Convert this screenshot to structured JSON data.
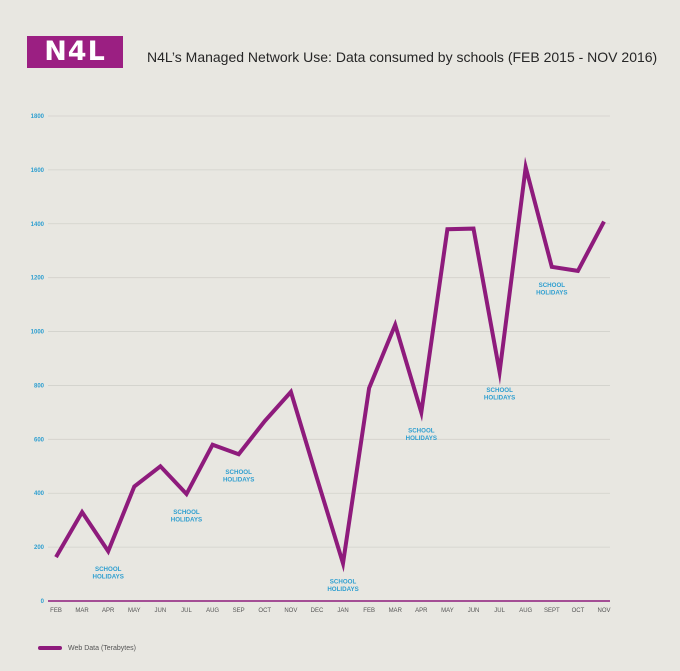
{
  "logo": {
    "text": "N4L"
  },
  "chart_data": {
    "type": "line",
    "title": "N4L’s Managed Network Use: Data consumed by schools (FEB 2015 - NOV 2016)",
    "xlabel": "",
    "ylabel": "",
    "categories": [
      "FEB",
      "MAR",
      "APR",
      "MAY",
      "JUN",
      "JUL",
      "AUG",
      "SEP",
      "OCT",
      "NOV",
      "DEC",
      "JAN",
      "FEB",
      "MAR",
      "APR",
      "MAY",
      "JUN",
      "JUL",
      "AUG",
      "SEPT",
      "OCT",
      "NOV"
    ],
    "series": [
      {
        "name": "Web Data (Terabytes)",
        "color": "#8e1b7c",
        "values": [
          163,
          330,
          185,
          425,
          500,
          397,
          580,
          545,
          668,
          776,
          455,
          140,
          790,
          1025,
          700,
          1380,
          1382,
          850,
          1610,
          1240,
          1225,
          1408
        ]
      }
    ],
    "ylim": [
      0,
      1800
    ],
    "yticks": [
      0,
      200,
      400,
      600,
      800,
      1000,
      1200,
      1400,
      1600,
      1800
    ],
    "grid": true,
    "legend_position": "bottom-left",
    "annotations": [
      {
        "text": [
          "SCHOOL",
          "HOLIDAYS"
        ],
        "category_index": 2,
        "value": 185
      },
      {
        "text": [
          "SCHOOL",
          "HOLIDAYS"
        ],
        "category_index": 5,
        "value": 397
      },
      {
        "text": [
          "SCHOOL",
          "HOLIDAYS"
        ],
        "category_index": 7,
        "value": 545
      },
      {
        "text": [
          "SCHOOL",
          "HOLIDAYS"
        ],
        "category_index": 11,
        "value": 140
      },
      {
        "text": [
          "SCHOOL",
          "HOLIDAYS"
        ],
        "category_index": 14,
        "value": 700
      },
      {
        "text": [
          "SCHOOL",
          "HOLIDAYS"
        ],
        "category_index": 17,
        "value": 850
      },
      {
        "text": [
          "SCHOOL",
          "HOLIDAYS"
        ],
        "category_index": 19,
        "value": 1240
      }
    ],
    "colors": {
      "line": "#8e1b7c",
      "axis_text": "#2f9fd0",
      "annotation": "#2f9fd0",
      "grid": "#d2d1cb"
    }
  }
}
